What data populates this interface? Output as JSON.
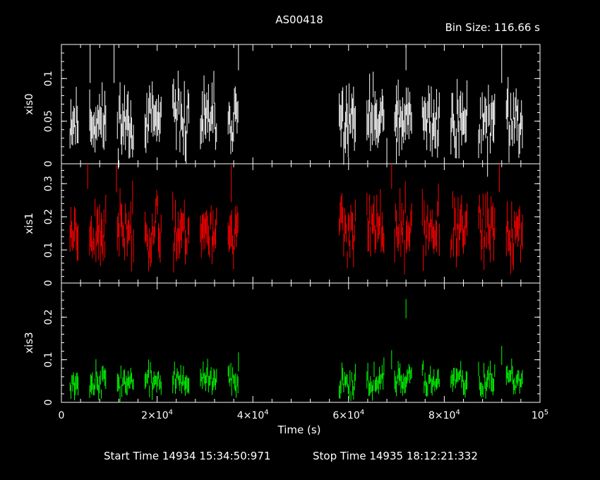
{
  "chart_data": {
    "type": "scatter",
    "title": "AS00418",
    "bin_size": "Bin Size: 116.66 s",
    "xlabel": "Time (s)",
    "xlim": [
      0,
      100000
    ],
    "x_ticks": [
      {
        "value": 0,
        "label": "0"
      },
      {
        "value": 20000,
        "label": "2×10",
        "exp": "4"
      },
      {
        "value": 40000,
        "label": "4×10",
        "exp": "4"
      },
      {
        "value": 60000,
        "label": "6×10",
        "exp": "4"
      },
      {
        "value": 80000,
        "label": "8×10",
        "exp": "4"
      },
      {
        "value": 100000,
        "label": "10",
        "exp": "5"
      }
    ],
    "start_time": "Start Time 14934 15:34:50:971",
    "stop_time": "Stop Time 14935 18:12:21:332",
    "segments": [
      [
        1800,
        37000
      ],
      [
        56000,
        98000
      ]
    ],
    "series": [
      {
        "name": "xis0",
        "color": "#ffffff",
        "ylim": [
          0,
          0.14
        ],
        "yticks": [
          0,
          0.05,
          0.1
        ],
        "ytick_labels": [
          "0",
          "0.05",
          "0.1"
        ],
        "mean": 0.05,
        "spread": 0.02,
        "err": 0.018,
        "seed": 11,
        "spikes": [
          [
            37000,
            0.135
          ],
          [
            72000,
            0.135
          ],
          [
            6000,
            0.12
          ],
          [
            11000,
            0.12
          ],
          [
            92000,
            0.12
          ],
          [
            68000,
            0.005
          ],
          [
            70000,
            0.005
          ]
        ]
      },
      {
        "name": "xis1",
        "color": "#ff0000",
        "ylim": [
          0,
          0.36
        ],
        "yticks": [
          0,
          0.1,
          0.2,
          0.3
        ],
        "ytick_labels": [
          "0",
          "0.1",
          "0.2",
          "0.3"
        ],
        "mean": 0.16,
        "spread": 0.05,
        "err": 0.04,
        "seed": 23,
        "spikes": [
          [
            5500,
            0.34
          ],
          [
            11500,
            0.33
          ],
          [
            69000,
            0.34
          ],
          [
            91500,
            0.33
          ],
          [
            35500,
            0.3
          ]
        ]
      },
      {
        "name": "xis3",
        "color": "#00ff00",
        "ylim": [
          0,
          0.28
        ],
        "yticks": [
          0,
          0.1,
          0.2
        ],
        "ytick_labels": [
          "0",
          "0.1",
          "0.2"
        ],
        "mean": 0.05,
        "spread": 0.018,
        "err": 0.016,
        "seed": 37,
        "spikes": [
          [
            72000,
            0.22
          ],
          [
            69000,
            0.1
          ],
          [
            37000,
            0.095
          ],
          [
            92000,
            0.11
          ]
        ]
      }
    ]
  }
}
